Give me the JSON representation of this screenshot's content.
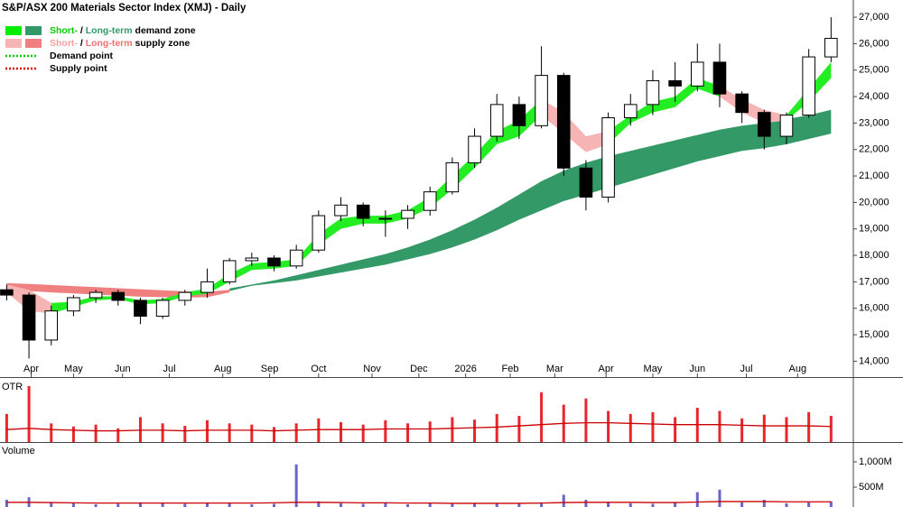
{
  "chart_data": [
    {
      "type": "candlestick",
      "title": "S&P/ASX 200 Materials Sector Index (XMJ) - Daily",
      "x": [
        0,
        1,
        2,
        3,
        4,
        5,
        6,
        7,
        8,
        9,
        10,
        11,
        12,
        13,
        14,
        15,
        16,
        17,
        18,
        19,
        20,
        21,
        22,
        23,
        24,
        25,
        26,
        27,
        28,
        29,
        30,
        31,
        32,
        33,
        34,
        35,
        36,
        37
      ],
      "open": [
        16700,
        16500,
        14800,
        15900,
        16400,
        16600,
        16300,
        15700,
        16300,
        16600,
        17000,
        17800,
        17900,
        17600,
        18200,
        19500,
        19900,
        19400,
        19400,
        19700,
        20400,
        21500,
        22500,
        23700,
        22900,
        24800,
        21300,
        20200,
        23200,
        23700,
        24600,
        24400,
        25300,
        24100,
        23400,
        22500,
        23300,
        25500
      ],
      "high": [
        16900,
        16600,
        16100,
        16500,
        16700,
        16700,
        16400,
        16400,
        16700,
        17500,
        17900,
        18100,
        18000,
        18400,
        19700,
        20200,
        20000,
        19700,
        19900,
        20600,
        21700,
        22800,
        24100,
        24000,
        25900,
        24900,
        21600,
        23400,
        24100,
        25000,
        25300,
        26000,
        26000,
        24200,
        23500,
        23400,
        25800,
        27000
      ],
      "low": [
        16300,
        14100,
        14600,
        15700,
        16200,
        16100,
        15400,
        15600,
        16100,
        16400,
        16900,
        17600,
        17400,
        17500,
        18100,
        19300,
        19100,
        18700,
        19000,
        19500,
        20300,
        21300,
        22300,
        22400,
        22800,
        21000,
        19700,
        20000,
        22900,
        23300,
        23800,
        24200,
        23600,
        23000,
        22000,
        22200,
        23200,
        25300
      ],
      "close": [
        16500,
        14800,
        15900,
        16400,
        16600,
        16300,
        15700,
        16300,
        16600,
        17000,
        17800,
        17900,
        17600,
        18200,
        19500,
        19900,
        19400,
        19400,
        19700,
        20400,
        21500,
        22500,
        23700,
        22900,
        24800,
        21300,
        20200,
        23200,
        23700,
        24600,
        24400,
        25300,
        24100,
        23400,
        22500,
        23300,
        25500,
        26200
      ],
      "bands": [
        {
          "color": "#f08080",
          "x": [
            0,
            1,
            2,
            3,
            4,
            5,
            6,
            7,
            8,
            9,
            10
          ],
          "upper": [
            16950,
            16920,
            16880,
            16840,
            16800,
            16760,
            16720,
            16680,
            16640,
            16620,
            16700
          ],
          "lower": [
            16700,
            16650,
            16600,
            16560,
            16520,
            16480,
            16440,
            16420,
            16400,
            16420,
            16600
          ]
        },
        {
          "color": "#339966",
          "x": [
            10,
            11,
            12,
            13,
            14,
            15,
            16,
            17,
            18,
            19,
            20,
            21,
            22,
            23,
            24,
            25,
            26,
            27,
            28,
            29,
            30,
            31,
            32,
            33,
            34,
            35,
            36,
            37
          ],
          "upper": [
            16750,
            16900,
            17050,
            17250,
            17450,
            17650,
            17850,
            18050,
            18300,
            18600,
            18950,
            19350,
            19800,
            20300,
            20800,
            21200,
            21500,
            21750,
            21950,
            22150,
            22350,
            22550,
            22750,
            22900,
            23000,
            23150,
            23300,
            23500
          ],
          "lower": [
            16650,
            16850,
            16950,
            17050,
            17200,
            17350,
            17500,
            17650,
            17850,
            18050,
            18300,
            18600,
            18950,
            19350,
            19700,
            20050,
            20300,
            20550,
            20800,
            21050,
            21300,
            21550,
            21750,
            21950,
            22050,
            22200,
            22400,
            22600
          ]
        },
        {
          "color": "#f7b4b4",
          "x": [
            0,
            1,
            2
          ],
          "upper": [
            16900,
            16700,
            16200
          ],
          "lower": [
            16600,
            15900,
            15800
          ]
        },
        {
          "color": "#22ee22",
          "x": [
            2,
            3,
            4,
            5,
            6,
            7,
            8,
            9,
            10,
            11,
            12,
            13,
            14,
            15,
            16,
            17,
            18,
            19,
            20,
            21,
            22,
            23,
            24
          ],
          "upper": [
            16200,
            16250,
            16450,
            16450,
            16300,
            16350,
            16600,
            16750,
            17300,
            17700,
            17750,
            17850,
            18800,
            19400,
            19500,
            19500,
            19700,
            20200,
            21000,
            21800,
            22700,
            23100,
            23900
          ],
          "lower": [
            15800,
            16050,
            16300,
            16350,
            16150,
            16200,
            16450,
            16550,
            17000,
            17450,
            17500,
            17600,
            18400,
            19000,
            19200,
            19200,
            19400,
            19800,
            20500,
            21300,
            22200,
            22500,
            23300
          ]
        },
        {
          "color": "#f7b4b4",
          "x": [
            24,
            25,
            26,
            27
          ],
          "upper": [
            23900,
            23400,
            22500,
            22700
          ],
          "lower": [
            23300,
            22600,
            21900,
            22200
          ]
        },
        {
          "color": "#22ee22",
          "x": [
            27,
            28,
            29,
            30,
            31,
            32
          ],
          "upper": [
            22700,
            23300,
            23800,
            24000,
            24700,
            24400
          ],
          "lower": [
            22200,
            23000,
            23400,
            23600,
            24300,
            24000
          ]
        },
        {
          "color": "#f7b4b4",
          "x": [
            32,
            33,
            34,
            35
          ],
          "upper": [
            24400,
            23900,
            23500,
            23300
          ],
          "lower": [
            24000,
            23400,
            23000,
            23100
          ]
        },
        {
          "color": "#22ee22",
          "x": [
            35,
            36,
            37
          ],
          "upper": [
            23300,
            24300,
            25300
          ],
          "lower": [
            23100,
            23800,
            24700
          ]
        }
      ],
      "legend": [
        {
          "swatches": [
            "#00ee00",
            "#339966"
          ],
          "parts": [
            {
              "text": "Short-",
              "color": "#00cc00"
            },
            {
              "text": " / ",
              "color": "#000000"
            },
            {
              "text": "Long-term",
              "color": "#339966"
            },
            {
              "text": " demand zone",
              "color": "#000000"
            }
          ]
        },
        {
          "swatches": [
            "#f7b4b4",
            "#f08080"
          ],
          "parts": [
            {
              "text": "Short-",
              "color": "#f7a0a0"
            },
            {
              "text": " / ",
              "color": "#000000"
            },
            {
              "text": "Long-term",
              "color": "#f07070"
            },
            {
              "text": " supply zone",
              "color": "#000000"
            }
          ]
        },
        {
          "line": "#00cc00",
          "parts": [
            {
              "text": "Demand point",
              "color": "#000000"
            }
          ]
        },
        {
          "line": "#dd0000",
          "parts": [
            {
              "text": "Supply point",
              "color": "#000000"
            }
          ]
        }
      ],
      "xlim": [
        -0.3,
        38
      ],
      "xticks": [
        {
          "value": 1.1,
          "label": "Apr"
        },
        {
          "value": 3.0,
          "label": "May"
        },
        {
          "value": 5.2,
          "label": "Jun"
        },
        {
          "value": 7.3,
          "label": "Jul"
        },
        {
          "value": 9.7,
          "label": "Aug"
        },
        {
          "value": 11.8,
          "label": "Sep"
        },
        {
          "value": 14.0,
          "label": "Oct"
        },
        {
          "value": 16.4,
          "label": "Nov"
        },
        {
          "value": 18.5,
          "label": "Dec"
        },
        {
          "value": 20.6,
          "label": "2026"
        },
        {
          "value": 22.6,
          "label": "Feb"
        },
        {
          "value": 24.6,
          "label": "Mar"
        },
        {
          "value": 26.9,
          "label": "Apr"
        },
        {
          "value": 29.0,
          "label": "May"
        },
        {
          "value": 31.0,
          "label": "Jun"
        },
        {
          "value": 33.2,
          "label": "Jul"
        },
        {
          "value": 35.5,
          "label": "Aug"
        }
      ],
      "ylim": [
        13400,
        27650
      ],
      "yticks": [
        {
          "value": 14000,
          "label": "14,000"
        },
        {
          "value": 15000,
          "label": "15,000"
        },
        {
          "value": 16000,
          "label": "16,000"
        },
        {
          "value": 17000,
          "label": "17,000"
        },
        {
          "value": 18000,
          "label": "18,000"
        },
        {
          "value": 19000,
          "label": "19,000"
        },
        {
          "value": 20000,
          "label": "20,000"
        },
        {
          "value": 21000,
          "label": "21,000"
        },
        {
          "value": 22000,
          "label": "22,000"
        },
        {
          "value": 23000,
          "label": "23,000"
        },
        {
          "value": 24000,
          "label": "24,000"
        },
        {
          "value": 25000,
          "label": "25,000"
        },
        {
          "value": 26000,
          "label": "26,000"
        },
        {
          "value": 27000,
          "label": "27,000"
        }
      ],
      "grid": false
    },
    {
      "type": "bar",
      "title": "OTR",
      "title_color": "#dd2222",
      "color": "#e8262b",
      "ma_color": "#cc0000",
      "x": [
        0,
        1,
        2,
        3,
        4,
        5,
        6,
        7,
        8,
        9,
        10,
        11,
        12,
        13,
        14,
        15,
        16,
        17,
        18,
        19,
        20,
        21,
        22,
        23,
        24,
        25,
        26,
        27,
        28,
        29,
        30,
        31,
        32,
        33,
        34,
        35,
        36,
        37
      ],
      "values": [
        45,
        90,
        30,
        25,
        28,
        22,
        40,
        30,
        26,
        35,
        30,
        28,
        24,
        30,
        38,
        32,
        28,
        35,
        30,
        33,
        40,
        36,
        45,
        42,
        80,
        60,
        70,
        50,
        45,
        48,
        40,
        55,
        50,
        38,
        44,
        40,
        48,
        42
      ],
      "ma": [
        20,
        22,
        20,
        19,
        18,
        18,
        19,
        19,
        18,
        19,
        19,
        19,
        18,
        19,
        20,
        20,
        20,
        21,
        21,
        21,
        22,
        23,
        24,
        26,
        28,
        30,
        31,
        31,
        30,
        29,
        28,
        28,
        28,
        27,
        26,
        26,
        26,
        25
      ],
      "xlim": [
        -0.3,
        38
      ],
      "ylim": [
        0,
        100
      ]
    },
    {
      "type": "bar",
      "title": "Volume",
      "title_color": "#6666cc",
      "color": "#6666cc",
      "ma_color": "#cc0000",
      "x": [
        0,
        1,
        2,
        3,
        4,
        5,
        6,
        7,
        8,
        9,
        10,
        11,
        12,
        13,
        14,
        15,
        16,
        17,
        18,
        19,
        20,
        21,
        22,
        23,
        24,
        25,
        26,
        27,
        28,
        29,
        30,
        31,
        32,
        33,
        34,
        35,
        36,
        37
      ],
      "values": [
        250000000,
        300000000,
        200000000,
        180000000,
        160000000,
        170000000,
        200000000,
        180000000,
        170000000,
        190000000,
        180000000,
        160000000,
        170000000,
        950000000,
        220000000,
        180000000,
        170000000,
        200000000,
        160000000,
        180000000,
        170000000,
        190000000,
        180000000,
        170000000,
        200000000,
        350000000,
        250000000,
        200000000,
        180000000,
        170000000,
        190000000,
        400000000,
        450000000,
        200000000,
        250000000,
        180000000,
        200000000,
        220000000
      ],
      "ma": [
        200000000,
        200000000,
        195000000,
        190000000,
        185000000,
        185000000,
        185000000,
        185000000,
        185000000,
        185000000,
        185000000,
        185000000,
        190000000,
        200000000,
        200000000,
        195000000,
        190000000,
        190000000,
        185000000,
        185000000,
        180000000,
        180000000,
        180000000,
        180000000,
        185000000,
        195000000,
        200000000,
        200000000,
        200000000,
        195000000,
        195000000,
        205000000,
        215000000,
        215000000,
        215000000,
        210000000,
        210000000,
        210000000
      ],
      "xlim": [
        -0.3,
        38
      ],
      "ylim": [
        0,
        1357000000
      ],
      "yticks": [
        {
          "value": 500000000,
          "label": "500M"
        },
        {
          "value": 1000000000,
          "label": "1,000M"
        }
      ]
    }
  ]
}
